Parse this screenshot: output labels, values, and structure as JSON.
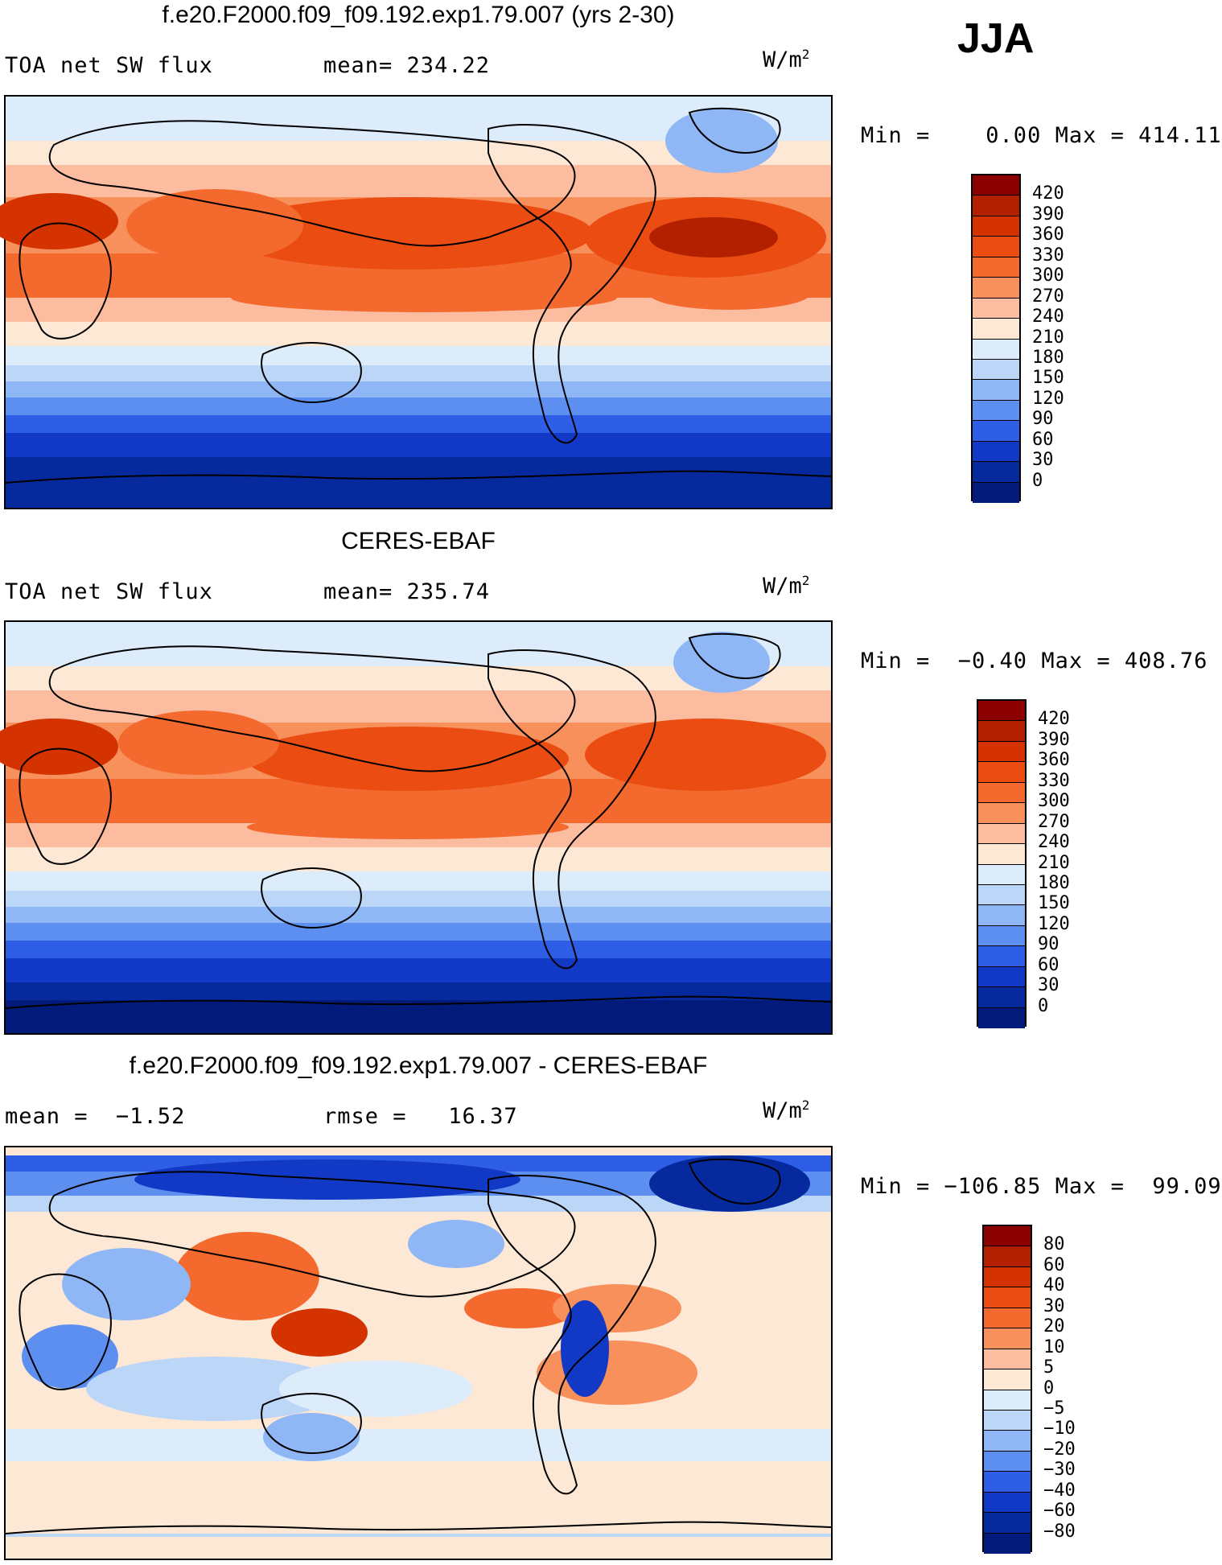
{
  "season": "JJA",
  "panels": [
    {
      "title": "f.e20.F2000.f09_f09.192.exp1.79.007 (yrs 2-30)",
      "left_text": "TOA net SW flux",
      "right_text": "mean= 234.22",
      "units": "W/m",
      "units_sup": "2",
      "minmax": "Min =    0.00 Max = 414.11",
      "scale": "abs",
      "color_levels": [
        "420",
        "390",
        "360",
        "330",
        "300",
        "270",
        "240",
        "210",
        "180",
        "150",
        "120",
        "90",
        "60",
        "30",
        "0"
      ],
      "colors": [
        "#8b0000",
        "#b22000",
        "#d43300",
        "#ea4c11",
        "#f46a2e",
        "#f8905c",
        "#fbbca0",
        "#fde8d6",
        "#dcecfa",
        "#bcd6f8",
        "#8fb6f5",
        "#5c8ff0",
        "#2e5ee6",
        "#1238c6",
        "#062a9e",
        "#021b7a"
      ]
    },
    {
      "title": "CERES-EBAF",
      "left_text": "TOA net SW flux",
      "right_text": "mean= 235.74",
      "units": "W/m",
      "units_sup": "2",
      "minmax": "Min =  −0.40 Max = 408.76",
      "scale": "abs",
      "color_levels": [
        "420",
        "390",
        "360",
        "330",
        "300",
        "270",
        "240",
        "210",
        "180",
        "150",
        "120",
        "90",
        "60",
        "30",
        "0"
      ],
      "colors": [
        "#8b0000",
        "#b22000",
        "#d43300",
        "#ea4c11",
        "#f46a2e",
        "#f8905c",
        "#fbbca0",
        "#fde8d6",
        "#dcecfa",
        "#bcd6f8",
        "#8fb6f5",
        "#5c8ff0",
        "#2e5ee6",
        "#1238c6",
        "#062a9e",
        "#021b7a"
      ]
    },
    {
      "title": "f.e20.F2000.f09_f09.192.exp1.79.007 - CERES-EBAF",
      "left_text": "mean =  −1.52",
      "right_text": "rmse =   16.37",
      "units": "W/m",
      "units_sup": "2",
      "minmax": "Min = −106.85 Max =  99.09",
      "scale": "diff",
      "color_levels": [
        "80",
        "60",
        "40",
        "30",
        "20",
        "10",
        "5",
        "0",
        "−5",
        "−10",
        "−20",
        "−30",
        "−40",
        "−60",
        "−80"
      ],
      "colors": [
        "#8b0000",
        "#b22000",
        "#d43300",
        "#ea4c11",
        "#f46a2e",
        "#f8905c",
        "#fbbca0",
        "#fde8d6",
        "#dcecfa",
        "#bcd6f8",
        "#8fb6f5",
        "#5c8ff0",
        "#2e5ee6",
        "#1238c6",
        "#062a9e",
        "#021b7a"
      ]
    }
  ]
}
